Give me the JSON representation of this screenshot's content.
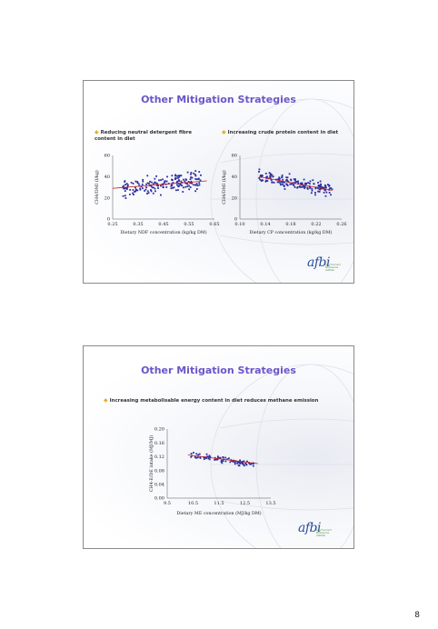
{
  "slides": [
    {
      "title": "Other Mitigation Strategies",
      "bullets": [
        "Reducing neutral detergent fibre content in diet",
        "Increasing crude protein content in diet"
      ],
      "logo_text": "afbi",
      "logo_sub": [
        "Agri-Food and",
        "Biosciences Institute"
      ]
    },
    {
      "title": "Other Mitigation Strategies",
      "bullets": [
        "Increasing metabolisable energy content in diet reduces methane emission"
      ],
      "logo_text": "afbi",
      "logo_sub": [
        "Agri-Food and",
        "Biosciences Institute"
      ]
    }
  ],
  "page_number": "8",
  "colors": {
    "title": "#6a55c8",
    "bullet": "#e0b22a",
    "points": "#2b2f9e",
    "trend": "#cc2222"
  },
  "chart_data": [
    {
      "type": "scatter",
      "xlabel": "Dietary NDF concentration (kg/kg DM)",
      "ylabel": "CH4/DMI (l/kg)",
      "xlim": [
        0.25,
        0.65
      ],
      "ylim": [
        0,
        60
      ],
      "xticks": [
        "0.25",
        "0.35",
        "0.45",
        "0.55",
        "0.65"
      ],
      "yticks": [
        "0",
        "20",
        "40",
        "60"
      ],
      "trend": [
        [
          0.25,
          29
        ],
        [
          0.62,
          36
        ]
      ],
      "cloud": {
        "x": [
          0.29,
          0.6
        ],
        "center": [
          29.5,
          36
        ],
        "spread": 7
      },
      "n_points": 180
    },
    {
      "type": "scatter",
      "xlabel": "Dietary CP concentration (kg/kg DM)",
      "ylabel": "CH4/DMI (l/kg)",
      "xlim": [
        0.1,
        0.26
      ],
      "ylim": [
        0,
        60
      ],
      "xticks": [
        "0.10",
        "0.14",
        "0.18",
        "0.22",
        "0.26"
      ],
      "yticks": [
        "0",
        "20",
        "40",
        "60"
      ],
      "trend": [
        [
          0.13,
          40
        ],
        [
          0.245,
          27
        ]
      ],
      "cloud": {
        "x": [
          0.13,
          0.245
        ],
        "center": [
          40,
          27
        ],
        "spread": 5.5
      },
      "n_points": 180
    },
    {
      "type": "scatter",
      "xlabel": "Dietary ME concentration (MJ/kg DM)",
      "ylabel": "CH4-E/DE intake (MJ/MJ)",
      "xlim": [
        9.5,
        13.5
      ],
      "ylim": [
        0,
        0.2
      ],
      "xticks": [
        "9.5",
        "10.5",
        "11.5",
        "12.5",
        "13.5"
      ],
      "yticks": [
        "0.00",
        "0.04",
        "0.08",
        "0.12",
        "0.16",
        "0.20"
      ],
      "trend": [
        [
          10.3,
          0.125
        ],
        [
          13.0,
          0.1
        ]
      ],
      "cloud": {
        "x": [
          10.4,
          12.9
        ],
        "center": [
          0.125,
          0.098
        ],
        "spread": 0.008
      },
      "n_points": 90
    }
  ]
}
